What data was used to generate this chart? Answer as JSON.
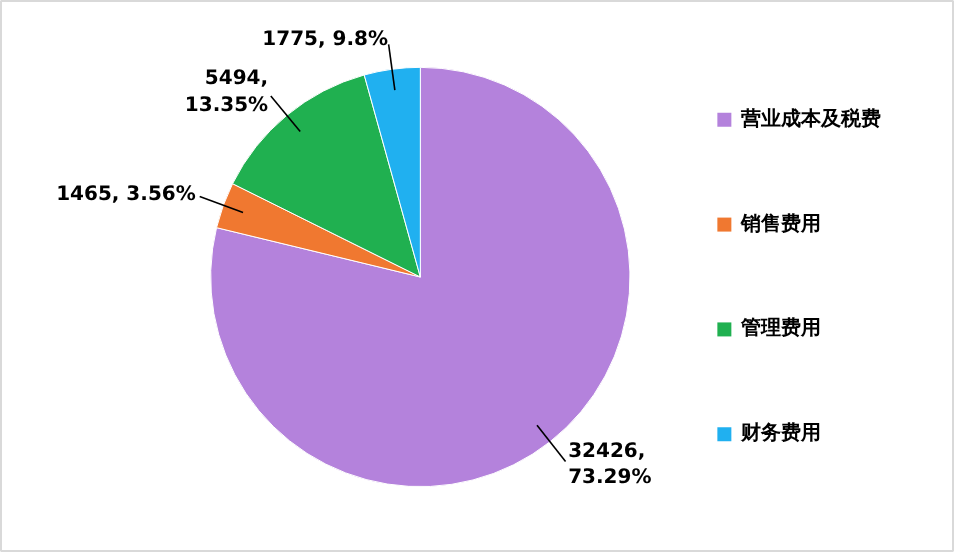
{
  "chart_data": {
    "type": "pie",
    "categories": [
      "营业成本及税费",
      "销售费用",
      "管理费用",
      "财务费用"
    ],
    "values": [
      32426,
      1465,
      5494,
      1775
    ],
    "colors": [
      "#b482dc",
      "#f07830",
      "#20b050",
      "#20b0f0"
    ],
    "value_labels": [
      "32426,\n73.29%",
      "1465, 3.56%",
      "5494,\n13.35%",
      "1775, 9.8%"
    ],
    "legend": "right"
  }
}
